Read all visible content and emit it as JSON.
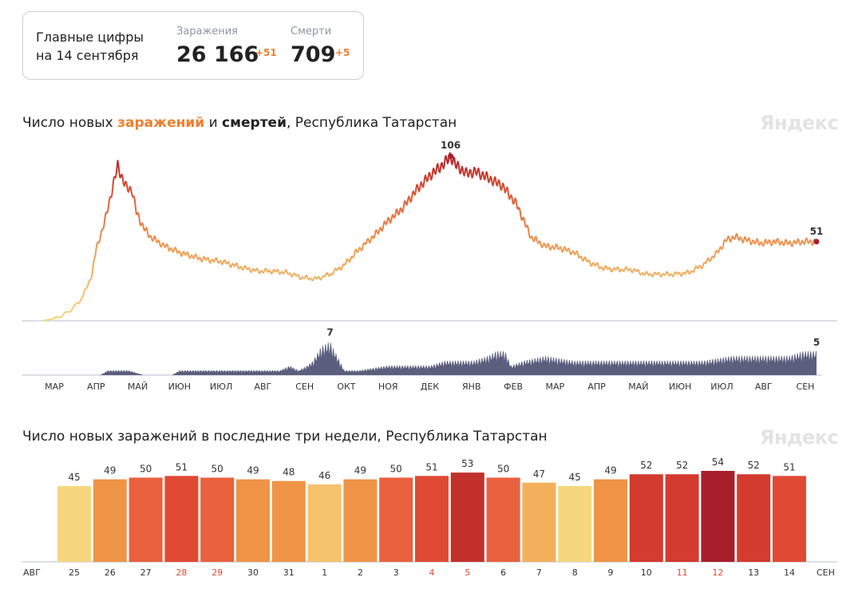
{
  "summary": {
    "label_line1": "Главные цифры",
    "label_line2": "на 14 сентября",
    "cases_label": "Заражения",
    "cases_value": "26 166",
    "cases_delta": "+51",
    "deaths_label": "Смерти",
    "deaths_value": "709",
    "deaths_delta": "+5"
  },
  "colors": {
    "low": "#f6d77e",
    "mid": "#ef9447",
    "high": "#e04a35",
    "max": "#a81f2b",
    "deaths": "#5b5f7d",
    "weekend": "#e04a35",
    "accent": "#ef7f2f"
  },
  "watermark": "Яндекс",
  "chart_data": [
    {
      "type": "line",
      "title_parts": [
        "Число новых ",
        "заражений",
        " и ",
        "смертей",
        ", Республика Татарстан"
      ],
      "x_months": [
        "МАР",
        "АПР",
        "МАЙ",
        "ИЮН",
        "ИЮЛ",
        "АВГ",
        "СЕН",
        "ОКТ",
        "НОЯ",
        "ДЕК",
        "ЯНВ",
        "ФЕВ",
        "МАР",
        "АПР",
        "МАЙ",
        "ИЮН",
        "ИЮЛ",
        "АВГ",
        "СЕН"
      ],
      "infections": {
        "name": "заражений",
        "peak_label": "106",
        "last_label": "51",
        "points": [
          [
            0,
            0
          ],
          [
            10,
            2
          ],
          [
            18,
            6
          ],
          [
            25,
            12
          ],
          [
            30,
            20
          ],
          [
            34,
            30
          ],
          [
            37,
            46
          ],
          [
            40,
            55
          ],
          [
            43,
            64
          ],
          [
            47,
            80
          ],
          [
            52,
            100
          ],
          [
            55,
            92
          ],
          [
            58,
            86
          ],
          [
            62,
            84
          ],
          [
            65,
            70
          ],
          [
            70,
            60
          ],
          [
            75,
            54
          ],
          [
            85,
            48
          ],
          [
            95,
            44
          ],
          [
            110,
            40
          ],
          [
            125,
            38
          ],
          [
            140,
            34
          ],
          [
            150,
            32
          ],
          [
            160,
            32
          ],
          [
            170,
            31
          ],
          [
            180,
            28
          ],
          [
            190,
            27
          ],
          [
            200,
            30
          ],
          [
            210,
            36
          ],
          [
            218,
            44
          ],
          [
            225,
            50
          ],
          [
            232,
            56
          ],
          [
            240,
            64
          ],
          [
            250,
            72
          ],
          [
            260,
            84
          ],
          [
            270,
            94
          ],
          [
            278,
            100
          ],
          [
            284,
            106
          ],
          [
            288,
            100
          ],
          [
            295,
            95
          ],
          [
            302,
            96
          ],
          [
            310,
            92
          ],
          [
            320,
            87
          ],
          [
            330,
            75
          ],
          [
            340,
            54
          ],
          [
            350,
            48
          ],
          [
            360,
            47
          ],
          [
            370,
            44
          ],
          [
            380,
            38
          ],
          [
            390,
            34
          ],
          [
            400,
            33
          ],
          [
            410,
            33
          ],
          [
            420,
            30
          ],
          [
            430,
            30
          ],
          [
            440,
            30
          ],
          [
            450,
            31
          ],
          [
            460,
            36
          ],
          [
            470,
            44
          ],
          [
            476,
            52
          ],
          [
            482,
            54
          ],
          [
            490,
            52
          ],
          [
            500,
            50
          ],
          [
            510,
            51
          ],
          [
            520,
            50
          ],
          [
            530,
            51
          ],
          [
            539,
            51
          ]
        ]
      },
      "deaths": {
        "name": "смертей",
        "peak_label": "7",
        "last_label": "5",
        "points": [
          [
            0,
            0
          ],
          [
            40,
            0
          ],
          [
            45,
            1
          ],
          [
            60,
            1
          ],
          [
            70,
            0
          ],
          [
            90,
            0
          ],
          [
            95,
            1
          ],
          [
            115,
            1
          ],
          [
            130,
            1
          ],
          [
            140,
            1
          ],
          [
            155,
            1
          ],
          [
            165,
            1
          ],
          [
            172,
            2
          ],
          [
            178,
            1
          ],
          [
            184,
            2
          ],
          [
            188,
            3
          ],
          [
            194,
            6
          ],
          [
            200,
            7
          ],
          [
            205,
            4
          ],
          [
            210,
            1
          ],
          [
            220,
            1
          ],
          [
            240,
            2
          ],
          [
            260,
            2
          ],
          [
            270,
            2
          ],
          [
            280,
            3
          ],
          [
            290,
            3
          ],
          [
            300,
            3
          ],
          [
            310,
            4
          ],
          [
            316,
            5
          ],
          [
            322,
            5
          ],
          [
            326,
            2
          ],
          [
            335,
            3
          ],
          [
            350,
            4
          ],
          [
            370,
            3
          ],
          [
            380,
            3
          ],
          [
            400,
            3
          ],
          [
            420,
            3
          ],
          [
            440,
            3
          ],
          [
            460,
            3
          ],
          [
            480,
            4
          ],
          [
            500,
            4
          ],
          [
            520,
            4
          ],
          [
            530,
            5
          ],
          [
            539,
            5
          ]
        ]
      },
      "ylim": [
        0,
        110
      ],
      "y2lim": [
        0,
        8
      ],
      "grid": false
    },
    {
      "type": "bar",
      "title": "Число новых заражений в последние три недели, Республика Татарстан",
      "month_start": "АВГ",
      "month_end": "СЕН",
      "categories": [
        "25",
        "26",
        "27",
        "28",
        "29",
        "30",
        "31",
        "1",
        "2",
        "3",
        "4",
        "5",
        "6",
        "7",
        "8",
        "9",
        "10",
        "11",
        "12",
        "13",
        "14"
      ],
      "values": [
        45,
        49,
        50,
        51,
        50,
        49,
        48,
        46,
        49,
        50,
        51,
        53,
        50,
        47,
        45,
        49,
        52,
        52,
        54,
        52,
        51
      ],
      "weekend": [
        false,
        false,
        false,
        true,
        true,
        false,
        false,
        false,
        false,
        false,
        true,
        true,
        false,
        false,
        false,
        false,
        false,
        true,
        true,
        false,
        false
      ],
      "ylim": [
        0,
        56
      ]
    }
  ]
}
